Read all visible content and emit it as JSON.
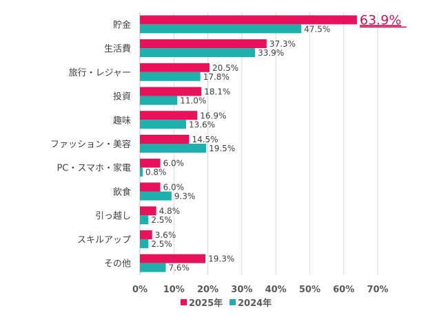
{
  "chart_data": {
    "type": "bar",
    "orientation": "horizontal",
    "categories": [
      "貯金",
      "生活費",
      "旅行・レジャー",
      "投資",
      "趣味",
      "ファッション・美容",
      "PC・スマホ・家電",
      "飲食",
      "引っ越し",
      "スキルアップ",
      "その他"
    ],
    "series": [
      {
        "name": "2025年",
        "color": "#e8125c",
        "values": [
          63.9,
          37.3,
          20.5,
          18.1,
          16.9,
          14.5,
          6.0,
          6.0,
          4.8,
          3.6,
          19.3
        ],
        "labels": [
          "63.9%",
          "37.3%",
          "20.5%",
          "18.1%",
          "16.9%",
          "14.5%",
          "6.0%",
          "6.0%",
          "4.8%",
          "3.6%",
          "19.3%"
        ]
      },
      {
        "name": "2024年",
        "color": "#1fb0ad",
        "values": [
          47.5,
          33.9,
          17.8,
          11.0,
          13.6,
          19.5,
          0.8,
          9.3,
          2.5,
          2.5,
          7.6
        ],
        "labels": [
          "47.5%",
          "33.9%",
          "17.8%",
          "11.0%",
          "13.6%",
          "19.5%",
          "0.8%",
          "9.3%",
          "2.5%",
          "2.5%",
          "7.6%"
        ]
      }
    ],
    "xlim": [
      0,
      70
    ],
    "xticks": [
      "0%",
      "10%",
      "20%",
      "30%",
      "40%",
      "50%",
      "60%",
      "70%"
    ],
    "grid": true,
    "legend": "bottom",
    "highlight": {
      "category": "貯金",
      "series": "2025年",
      "color": "#c2185b",
      "underlined": true
    }
  }
}
